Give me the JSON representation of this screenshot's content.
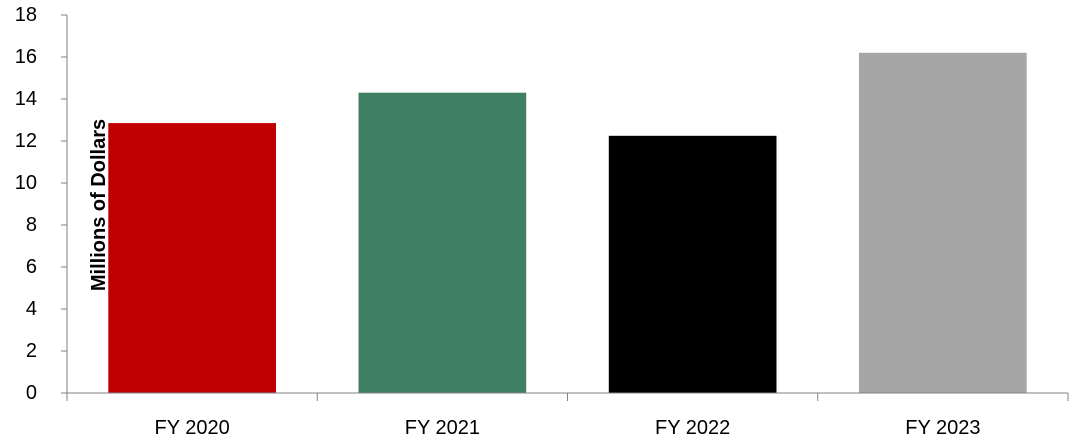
{
  "chart_data": {
    "type": "bar",
    "title": "",
    "xlabel": "",
    "ylabel": "Millions of Dollars",
    "categories": [
      "FY 2020",
      "FY 2021",
      "FY 2022",
      "FY 2023"
    ],
    "values": [
      12.85,
      14.3,
      12.25,
      16.2
    ],
    "colors": [
      "#c00000",
      "#3f8063",
      "#000000",
      "#a6a6a6"
    ],
    "ylim": [
      0,
      18
    ],
    "yticks": [
      "0",
      "2",
      "4",
      "6",
      "8",
      "10",
      "12",
      "14",
      "16",
      "18"
    ],
    "grid": false,
    "legend": "none"
  }
}
